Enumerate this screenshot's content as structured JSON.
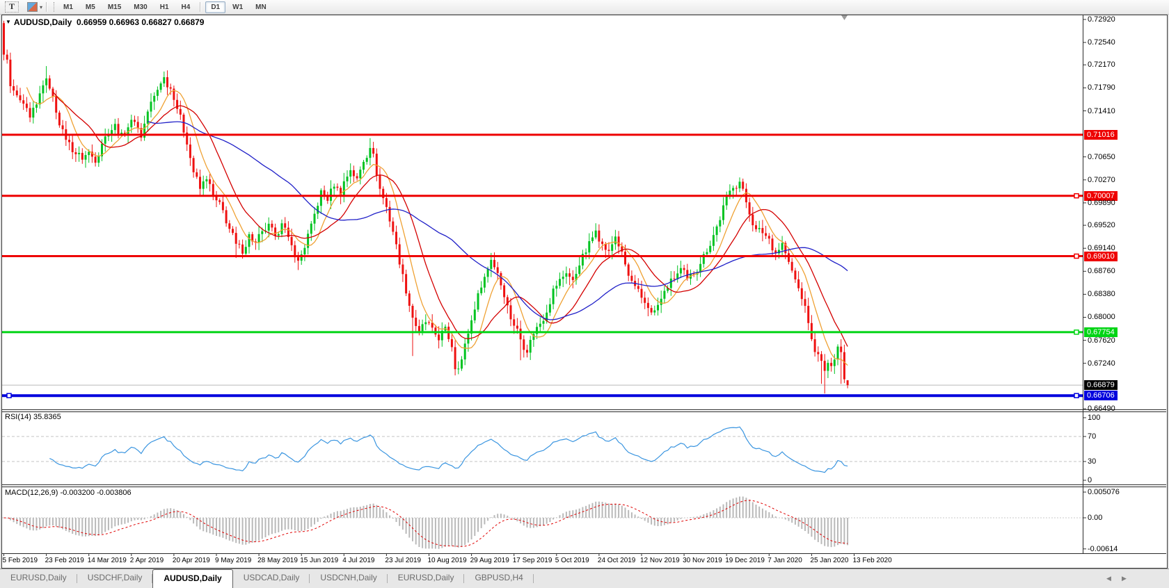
{
  "toolbar": {
    "text_tool": "T",
    "styles_caret": "▾",
    "timeframe_groups": [
      [
        "M1",
        "M5",
        "M15",
        "M30",
        "H1",
        "H4"
      ],
      [
        "D1",
        "W1",
        "MN"
      ]
    ],
    "active_timeframe": "D1"
  },
  "chart_header": {
    "collapse_icon": "▼",
    "symbol": "AUDUSD,Daily",
    "ohlc": "0.66959 0.66963 0.66827 0.66879"
  },
  "price_axis": {
    "ticks": [
      "0.72920",
      "0.72540",
      "0.72170",
      "0.71790",
      "0.71410",
      "0.70650",
      "0.70270",
      "0.69890",
      "0.69520",
      "0.69140",
      "0.68760",
      "0.68380",
      "0.68000",
      "0.67620",
      "0.67240",
      "0.66490"
    ],
    "levels": [
      {
        "label": "0.71016",
        "price": 0.71016,
        "color": "#ee0000",
        "kind": "resistance",
        "handle": false
      },
      {
        "label": "0.70007",
        "price": 0.70007,
        "color": "#ee0000",
        "kind": "resistance",
        "handle": true
      },
      {
        "label": "0.69010",
        "price": 0.6901,
        "color": "#ee0000",
        "kind": "resistance",
        "handle": true
      },
      {
        "label": "0.67754",
        "price": 0.67754,
        "color": "#00d414",
        "kind": "support",
        "handle": true
      },
      {
        "label": "0.66879",
        "price": 0.66879,
        "color": "#b9b9b9",
        "box_color": "#000000",
        "kind": "bid",
        "handle": false
      },
      {
        "label": "0.66706",
        "price": 0.66706,
        "color": "#0000dd",
        "kind": "support-strong",
        "handle": true,
        "left_handle": true
      }
    ]
  },
  "rsi_panel": {
    "label": "RSI(14) 35.8365",
    "ticks": [
      "100",
      "70",
      "30",
      "0"
    ],
    "levels": [
      70,
      30
    ],
    "line_color": "#3a95e0"
  },
  "macd_panel": {
    "label": "MACD(12,26,9) -0.003200 -0.003806",
    "ticks": [
      "0.005076",
      "0.00",
      "-0.00614"
    ],
    "histogram_color": "#b9b9b9",
    "signal_color": "#e00000"
  },
  "date_axis": [
    "5 Feb 2019",
    "23 Feb 2019",
    "14 Mar 2019",
    "2 Apr 2019",
    "20 Apr 2019",
    "9 May 2019",
    "28 May 2019",
    "15 Jun 2019",
    "4 Jul 2019",
    "23 Jul 2019",
    "10 Aug 2019",
    "29 Aug 2019",
    "17 Sep 2019",
    "5 Oct 2019",
    "24 Oct 2019",
    "12 Nov 2019",
    "30 Nov 2019",
    "19 Dec 2019",
    "7 Jan 2020",
    "25 Jan 2020",
    "13 Feb 2020"
  ],
  "tabs": {
    "items": [
      {
        "label": "EURUSD,Daily",
        "active": false
      },
      {
        "label": "USDCHF,Daily",
        "active": false
      },
      {
        "label": "AUDUSD,Daily",
        "active": true
      },
      {
        "label": "USDCAD,Daily",
        "active": false
      },
      {
        "label": "USDCNH,Daily",
        "active": false
      },
      {
        "label": "EURUSD,Daily",
        "active": false
      },
      {
        "label": "GBPUSD,H4",
        "active": false
      }
    ],
    "scroll_left": "◀",
    "scroll_right": "▶"
  },
  "chart_data": {
    "type": "candlestick",
    "symbol": "AUDUSD",
    "timeframe": "Daily",
    "title": "AUDUSD,Daily 0.66959 0.66963 0.66827 0.66879",
    "price_range": {
      "top": 0.7292,
      "bottom": 0.6649
    },
    "up_color": "#00c321",
    "down_color": "#ee1111",
    "last_ohlc": {
      "open": 0.66959,
      "high": 0.66963,
      "low": 0.66827,
      "close": 0.66879
    },
    "close_anchors": [
      [
        0,
        0.7232
      ],
      [
        1,
        0.7228
      ],
      [
        2,
        0.718
      ],
      [
        4,
        0.7165
      ],
      [
        6,
        0.715
      ],
      [
        8,
        0.7128
      ],
      [
        10,
        0.715
      ],
      [
        12,
        0.7185
      ],
      [
        13,
        0.7192
      ],
      [
        14,
        0.718
      ],
      [
        16,
        0.714
      ],
      [
        18,
        0.7108
      ],
      [
        20,
        0.7088
      ],
      [
        22,
        0.707
      ],
      [
        24,
        0.7062
      ],
      [
        26,
        0.7073
      ],
      [
        28,
        0.7058
      ],
      [
        30,
        0.7088
      ],
      [
        32,
        0.7105
      ],
      [
        34,
        0.7118
      ],
      [
        36,
        0.7102
      ],
      [
        38,
        0.7115
      ],
      [
        40,
        0.7125
      ],
      [
        42,
        0.7098
      ],
      [
        44,
        0.714
      ],
      [
        46,
        0.7165
      ],
      [
        48,
        0.7188
      ],
      [
        49,
        0.7196
      ],
      [
        51,
        0.7178
      ],
      [
        52,
        0.7162
      ],
      [
        54,
        0.7132
      ],
      [
        56,
        0.7088
      ],
      [
        58,
        0.704
      ],
      [
        60,
        0.7012
      ],
      [
        62,
        0.703
      ],
      [
        64,
        0.7
      ],
      [
        65,
        0.6992
      ],
      [
        67,
        0.6976
      ],
      [
        69,
        0.6946
      ],
      [
        71,
        0.692
      ],
      [
        73,
        0.6908
      ],
      [
        75,
        0.6936
      ],
      [
        77,
        0.6922
      ],
      [
        79,
        0.694
      ],
      [
        81,
        0.6952
      ],
      [
        83,
        0.6932
      ],
      [
        85,
        0.6958
      ],
      [
        87,
        0.693
      ],
      [
        89,
        0.6902
      ],
      [
        90,
        0.6892
      ],
      [
        92,
        0.6916
      ],
      [
        94,
        0.6952
      ],
      [
        96,
        0.6986
      ],
      [
        97,
        0.7008
      ],
      [
        99,
        0.6994
      ],
      [
        101,
        0.7018
      ],
      [
        103,
        0.7002
      ],
      [
        104,
        0.7024
      ],
      [
        106,
        0.7044
      ],
      [
        108,
        0.7028
      ],
      [
        110,
        0.7058
      ],
      [
        112,
        0.7082
      ],
      [
        113,
        0.7068
      ],
      [
        115,
        0.7012
      ],
      [
        117,
        0.6982
      ],
      [
        119,
        0.6942
      ],
      [
        121,
        0.689
      ],
      [
        123,
        0.6842
      ],
      [
        125,
        0.68
      ],
      [
        127,
        0.6775
      ],
      [
        129,
        0.6792
      ],
      [
        131,
        0.678
      ],
      [
        133,
        0.6764
      ],
      [
        135,
        0.6782
      ],
      [
        137,
        0.6752
      ],
      [
        138,
        0.6716
      ],
      [
        140,
        0.673
      ],
      [
        142,
        0.6774
      ],
      [
        144,
        0.6815
      ],
      [
        146,
        0.6852
      ],
      [
        148,
        0.688
      ],
      [
        149,
        0.6896
      ],
      [
        151,
        0.6874
      ],
      [
        153,
        0.6836
      ],
      [
        155,
        0.6798
      ],
      [
        157,
        0.678
      ],
      [
        158,
        0.6764
      ],
      [
        160,
        0.6744
      ],
      [
        162,
        0.6774
      ],
      [
        164,
        0.679
      ],
      [
        166,
        0.681
      ],
      [
        168,
        0.6846
      ],
      [
        170,
        0.6862
      ],
      [
        172,
        0.6874
      ],
      [
        174,
        0.686
      ],
      [
        176,
        0.6888
      ],
      [
        178,
        0.6908
      ],
      [
        180,
        0.6932
      ],
      [
        181,
        0.6946
      ],
      [
        183,
        0.692
      ],
      [
        185,
        0.6908
      ],
      [
        187,
        0.6934
      ],
      [
        189,
        0.6906
      ],
      [
        191,
        0.6868
      ],
      [
        193,
        0.685
      ],
      [
        195,
        0.683
      ],
      [
        197,
        0.6816
      ],
      [
        199,
        0.681
      ],
      [
        201,
        0.683
      ],
      [
        203,
        0.685
      ],
      [
        205,
        0.6864
      ],
      [
        207,
        0.688
      ],
      [
        209,
        0.6862
      ],
      [
        211,
        0.6872
      ],
      [
        213,
        0.689
      ],
      [
        215,
        0.691
      ],
      [
        217,
        0.6936
      ],
      [
        219,
        0.6962
      ],
      [
        221,
        0.6998
      ],
      [
        223,
        0.7016
      ],
      [
        225,
        0.7024
      ],
      [
        226,
        0.701
      ],
      [
        228,
        0.6972
      ],
      [
        230,
        0.6944
      ],
      [
        232,
        0.694
      ],
      [
        234,
        0.693
      ],
      [
        236,
        0.6906
      ],
      [
        238,
        0.6922
      ],
      [
        240,
        0.689
      ],
      [
        242,
        0.6862
      ],
      [
        244,
        0.6832
      ],
      [
        246,
        0.6792
      ],
      [
        247,
        0.6762
      ],
      [
        249,
        0.6737
      ],
      [
        251,
        0.6712
      ],
      [
        253,
        0.6722
      ],
      [
        255,
        0.6752
      ],
      [
        256,
        0.6742
      ],
      [
        257,
        0.67
      ],
      [
        258,
        0.66879
      ]
    ],
    "wick_overrides": {
      "0": {
        "h": 0.729
      },
      "13": {
        "h": 0.7215
      },
      "49": {
        "h": 0.7206
      },
      "71": {
        "l": 0.6898
      },
      "90": {
        "l": 0.6878
      },
      "112": {
        "h": 0.7096
      },
      "125": {
        "l": 0.6736
      },
      "138": {
        "l": 0.6704
      },
      "158": {
        "l": 0.6729
      },
      "199": {
        "l": 0.6803
      },
      "225": {
        "h": 0.7031
      },
      "250": {
        "l": 0.669
      },
      "251": {
        "l": 0.6674
      },
      "256": {
        "l": 0.669
      }
    },
    "moving_averages": [
      {
        "period": 8,
        "color": "#efa133"
      },
      {
        "period": 16,
        "color": "#d40000"
      },
      {
        "period": 45,
        "color": "#2020c8"
      }
    ],
    "rsi": {
      "period": 14,
      "last_value": 35.8365,
      "overbought": 70,
      "oversold": 30
    },
    "macd": {
      "fast": 12,
      "slow": 26,
      "signal": 9,
      "last_macd": -0.0032,
      "last_signal": -0.003806,
      "scale_max": 0.005076,
      "scale_min": -0.00614
    }
  }
}
